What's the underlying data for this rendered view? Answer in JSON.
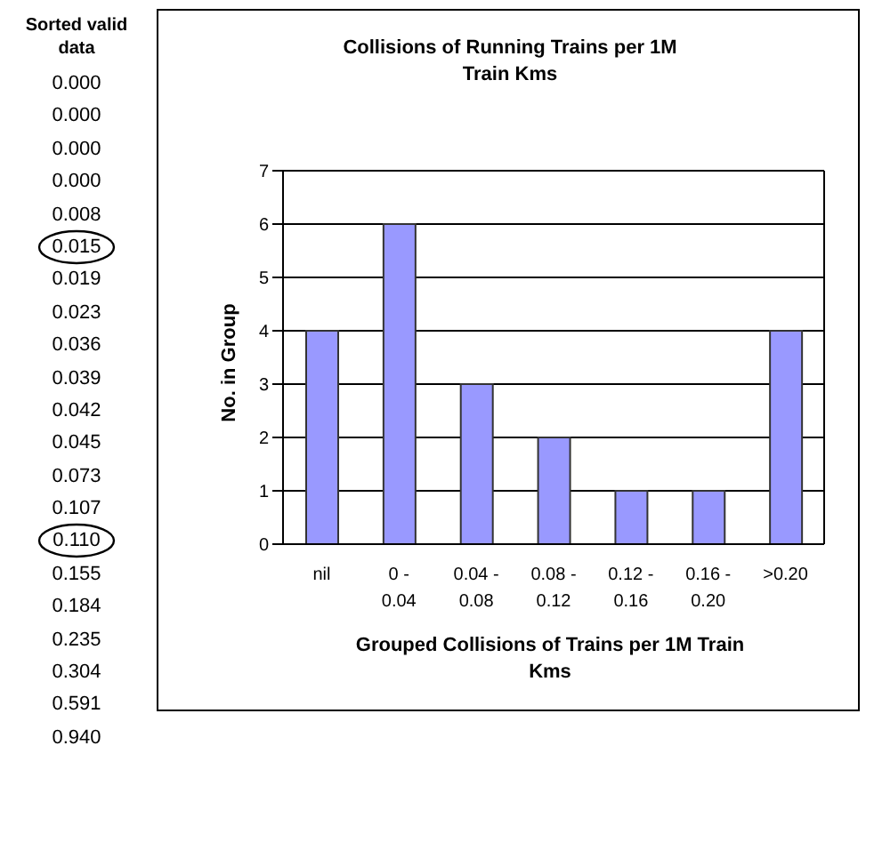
{
  "chart_data": {
    "type": "bar",
    "title": "Collisions of Running Trains per 1M Train Kms",
    "xlabel": "Grouped Collisions of Trains per 1M Train Kms",
    "ylabel": "No. in Group",
    "categories": [
      "nil",
      "0 - 0.04",
      "0.04 - 0.08",
      "0.08 - 0.12",
      "0.12 - 0.16",
      "0.16 - 0.20",
      ">0.20"
    ],
    "values": [
      4,
      6,
      3,
      2,
      1,
      1,
      4
    ],
    "color": "#9999ff",
    "ylim": [
      0,
      7
    ],
    "yticks": [
      0,
      1,
      2,
      3,
      4,
      5,
      6,
      7
    ],
    "grid": "y",
    "annotations": [
      "Sorted valid data",
      "0.000",
      "0.000",
      "0.000",
      "0.000",
      "0.008",
      "0.015",
      "0.019",
      "0.023",
      "0.036",
      "0.039",
      "0.042",
      "0.045",
      "0.073",
      "0.107",
      "0.110",
      "0.155",
      "0.184",
      "0.235",
      "0.304",
      "0.591",
      "0.940"
    ]
  }
}
